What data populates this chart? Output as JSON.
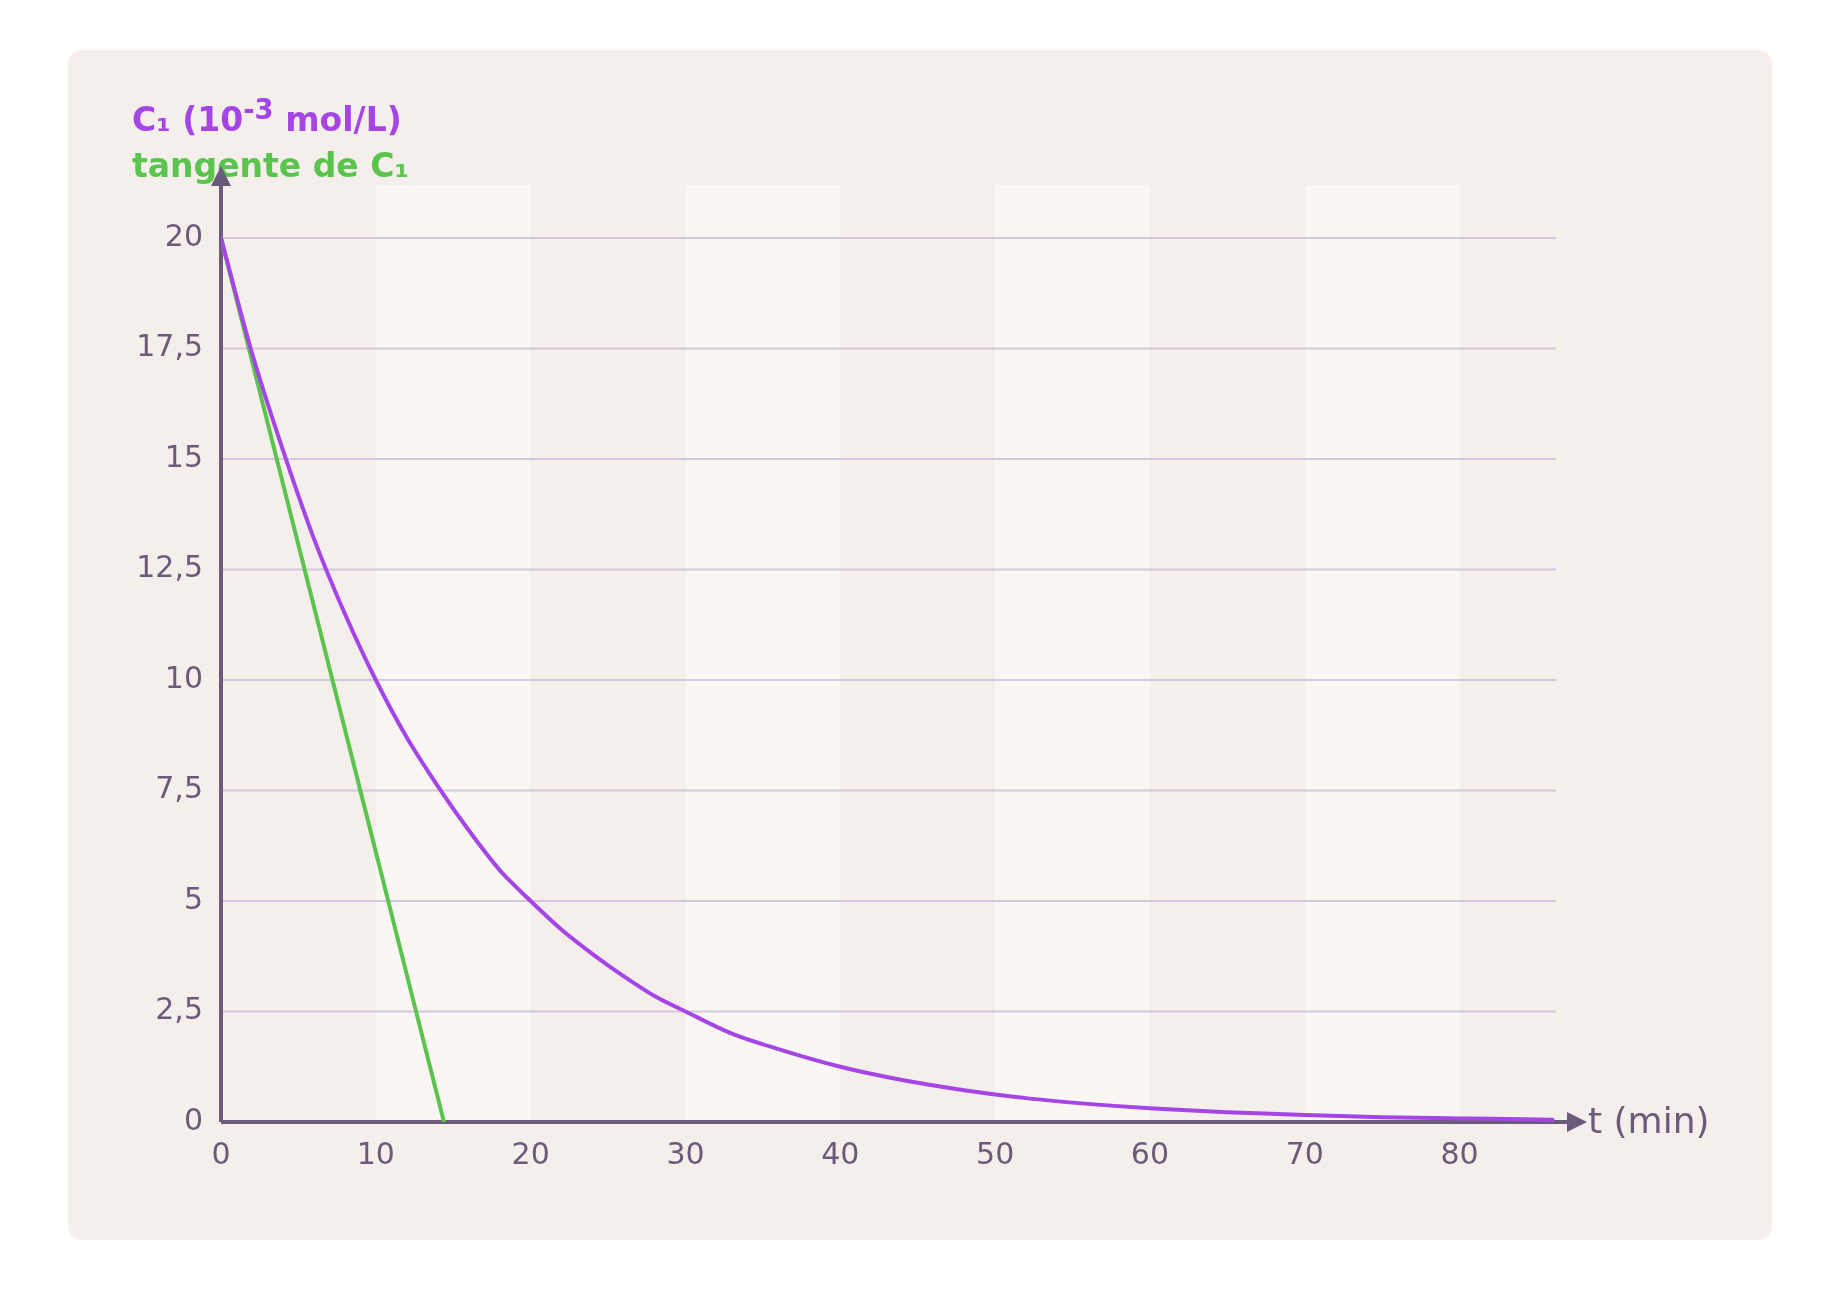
{
  "chart_data": {
    "type": "line",
    "xlabel": "t (min)",
    "xlim": [
      0,
      87
    ],
    "ylim": [
      0,
      21.2
    ],
    "xticks": [
      0,
      10,
      20,
      30,
      40,
      50,
      60,
      70,
      80
    ],
    "yticks": [
      0,
      {
        "value": 2.5,
        "label": "2,5"
      },
      5,
      {
        "value": 7.5,
        "label": "7,5"
      },
      10,
      {
        "value": 12.5,
        "label": "12,5"
      },
      15,
      {
        "value": 17.5,
        "label": "17,5"
      },
      20
    ],
    "grid": "y",
    "marker": "none",
    "legend": "top left",
    "bands": [
      {
        "axis": "x",
        "from": 10,
        "to": 20,
        "color": "#faf6f3"
      },
      {
        "axis": "x",
        "from": 30,
        "to": 40,
        "color": "#faf6f3"
      },
      {
        "axis": "x",
        "from": 50,
        "to": 60,
        "color": "#faf6f3"
      },
      {
        "axis": "x",
        "from": 70,
        "to": 80,
        "color": "#faf6f3"
      }
    ],
    "series": [
      {
        "name": "C₁ (10$^{-3}$ mol/L)",
        "color": "#a545e6",
        "x": [
          0,
          2,
          4,
          6,
          8,
          10,
          12,
          14,
          16,
          18,
          20,
          22,
          24,
          26,
          28,
          30,
          33,
          36,
          40,
          44,
          48,
          52,
          56,
          60,
          65,
          70,
          75,
          80,
          86
        ],
        "values": [
          20,
          17.4,
          15.2,
          13.2,
          11.5,
          10,
          8.7,
          7.6,
          6.6,
          5.7,
          5,
          4.35,
          3.8,
          3.3,
          2.85,
          2.5,
          2.0,
          1.65,
          1.25,
          0.95,
          0.72,
          0.54,
          0.41,
          0.31,
          0.22,
          0.16,
          0.11,
          0.082,
          0.052
        ]
      },
      {
        "name": "tangente de C₁",
        "color": "#5bc44e",
        "x": [
          0,
          14.4
        ],
        "values": [
          20,
          0
        ]
      }
    ]
  }
}
